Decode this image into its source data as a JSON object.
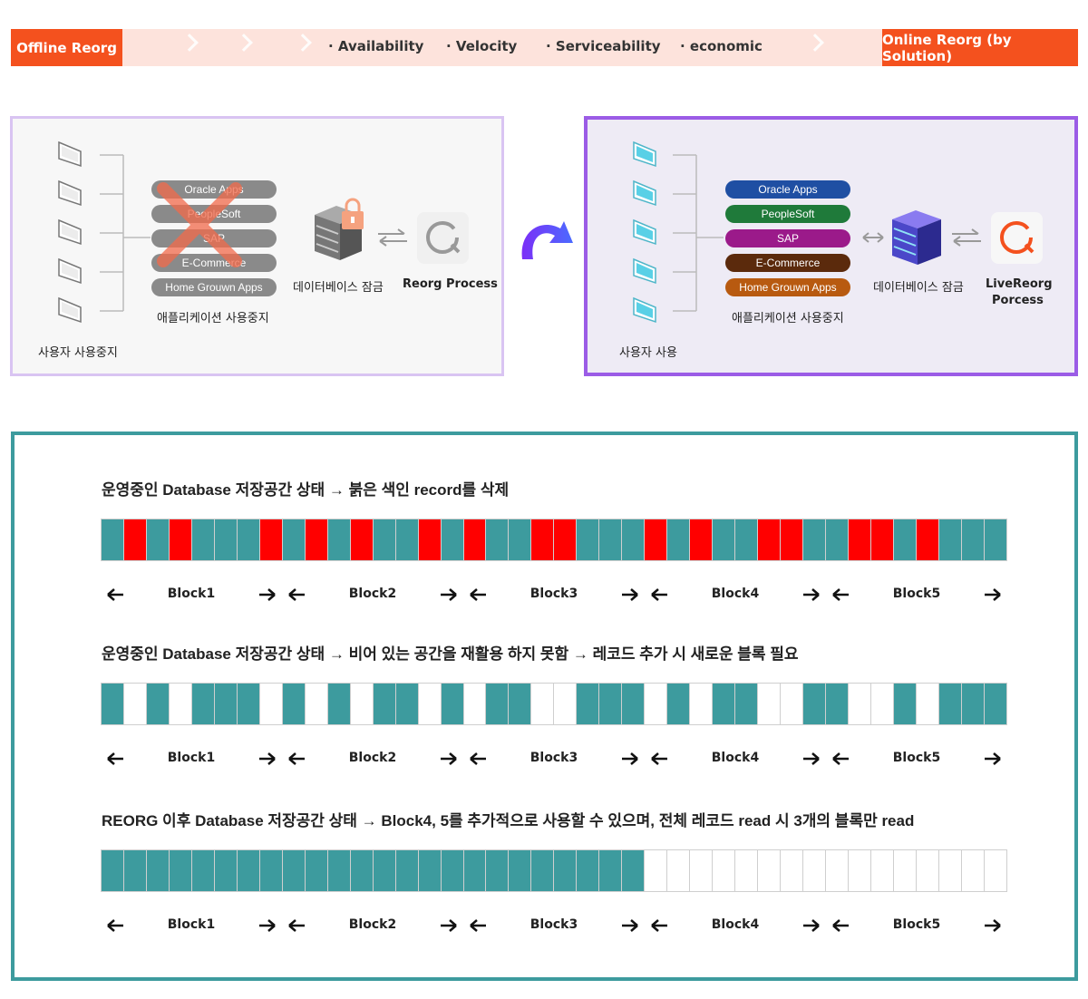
{
  "banner": {
    "left_tag": "Offline Reorg",
    "right_tag": "Online Reorg (by Solution)",
    "features": [
      "· Availability",
      "· Velocity",
      "· Serviceability",
      "· economic"
    ]
  },
  "offline": {
    "apps": [
      "Oracle Apps",
      "PeopleSoft",
      "SAP",
      "E-Commerce",
      "Home Grouwn Apps"
    ],
    "users_label": "사용자 사용중지",
    "apps_label": "애플리케이션 사용중지",
    "db_label": "데이터베이스 잠금",
    "process_label": "Reorg Process"
  },
  "online": {
    "apps": [
      "Oracle Apps",
      "PeopleSoft",
      "SAP",
      "E-Commerce",
      "Home Grouwn Apps"
    ],
    "app_colors": [
      "#1f4fa3",
      "#1f7a3a",
      "#9b1a8a",
      "#5b2a0c",
      "#b85a10"
    ],
    "users_label": "사용자 사용",
    "apps_label": "애플리케이션 사용중지",
    "db_label": "데이터베이스 잠금",
    "process_label_1": "LiveReorg",
    "process_label_2": "Porcess"
  },
  "colors": {
    "accent": "#f4511e",
    "teal": "#3d9b9e",
    "red": "#ff0000",
    "purple": "#9b5ce6"
  },
  "storage": {
    "rows": [
      {
        "title": "운영중인 Database 저장공간 상태 → 붉은 색인 record를 삭제",
        "cells": "TRTRTTTRTRTRTTRTRTTRRTTTRTRTTRRTTRRTRTT"
      },
      {
        "title": "운영중인 Database 저장공간 상태 → 비어 있는 공간을 재활용 하지 못함 → 레코드 추가 시 새로운 블록 필요",
        "cells": "TWTWTTTWTWTWTTWTWTTWWTTTWTWTTWWTTWWTWTT"
      },
      {
        "title": "REORG 이후 Database 저장공간 상태 → Block4, 5를 추가적으로 사용할 수 있으며, 전체 레코드 read 시 3개의 블록만 read",
        "cells": "TTTTTTTTTTTTTTTTTTTTTTTTWWWWWWWWWWWWWWWW"
      }
    ],
    "blocks": [
      "Block1",
      "Block2",
      "Block3",
      "Block4",
      "Block5"
    ]
  }
}
